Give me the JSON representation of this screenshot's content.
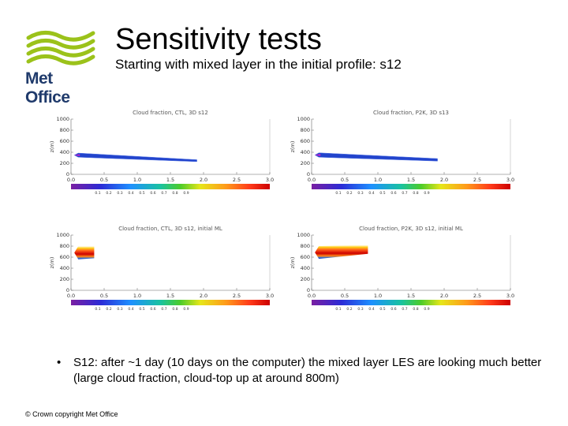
{
  "slide": {
    "title": "Sensitivity tests",
    "subtitle": "Starting with mixed layer in the initial profile: s12",
    "logo_text": "Met Office",
    "bullet_symbol": "•",
    "bullet_text": "S12: after ~1 day (10 days on the computer) the mixed layer LES are looking much better (large cloud fraction, cloud-top up at around 800m)",
    "footer": "© Crown copyright   Met Office"
  },
  "colors": {
    "logo_green": "#9bc21a",
    "logo_text": "#1f3a6b",
    "blue_cloud": "#2244cc"
  },
  "chart_data": [
    {
      "type": "heatmap",
      "title": "Cloud fraction, CTL, 3D s12",
      "ylabel": "z(m)",
      "xticks": [
        "0.0",
        "0.5",
        "1.0",
        "1.5",
        "2.0",
        "2.5",
        "3.0"
      ],
      "yticks": [
        "0",
        "200",
        "400",
        "600",
        "800",
        "1000"
      ],
      "colorbar_ticks": [
        "0.1",
        "0.2",
        "0.3",
        "0.4",
        "0.5",
        "0.6",
        "0.7",
        "0.8",
        "0.9"
      ],
      "xlim": [
        0,
        3
      ],
      "ylim": [
        0,
        1000
      ],
      "cloud": {
        "x_end": 1.9,
        "base_start": 310,
        "top_start": 385,
        "base_end": 230,
        "top_end": 265
      }
    },
    {
      "type": "heatmap",
      "title": "Cloud fraction, P2K, 3D s13",
      "ylabel": "z(m)",
      "xticks": [
        "0.0",
        "0.5",
        "1.0",
        "1.5",
        "2.0",
        "2.5",
        "3.0"
      ],
      "yticks": [
        "0",
        "200",
        "400",
        "600",
        "800",
        "1000"
      ],
      "colorbar_ticks": [
        "0.1",
        "0.2",
        "0.3",
        "0.4",
        "0.5",
        "0.6",
        "0.7",
        "0.8",
        "0.9"
      ],
      "xlim": [
        0,
        3
      ],
      "ylim": [
        0,
        1000
      ],
      "cloud": {
        "x_end": 1.9,
        "base_start": 310,
        "top_start": 390,
        "base_end": 240,
        "top_end": 285
      }
    },
    {
      "type": "heatmap",
      "title": "Cloud fraction, CTL, 3D s12, initial ML",
      "ylabel": "z(m)",
      "xticks": [
        "0.0",
        "0.5",
        "1.0",
        "1.5",
        "2.0",
        "2.5",
        "3.0"
      ],
      "yticks": [
        "0",
        "200",
        "400",
        "600",
        "800",
        "1000"
      ],
      "colorbar_ticks": [
        "0.1",
        "0.2",
        "0.3",
        "0.4",
        "0.5",
        "0.6",
        "0.7",
        "0.8",
        "0.9"
      ],
      "xlim": [
        0,
        3
      ],
      "ylim": [
        0,
        1000
      ],
      "cloud": {
        "x_end": 0.35,
        "base_start": 560,
        "top_start": 800,
        "base_end": 580,
        "top_end": 800
      }
    },
    {
      "type": "heatmap",
      "title": "Cloud fraction, P2K, 3D s12, initial ML",
      "ylabel": "z(m)",
      "xticks": [
        "0.0",
        "0.5",
        "1.0",
        "1.5",
        "2.0",
        "2.5",
        "3.0"
      ],
      "yticks": [
        "0",
        "200",
        "400",
        "600",
        "800",
        "1000"
      ],
      "colorbar_ticks": [
        "0.1",
        "0.2",
        "0.3",
        "0.4",
        "0.5",
        "0.6",
        "0.7",
        "0.8",
        "0.9"
      ],
      "xlim": [
        0,
        3
      ],
      "ylim": [
        0,
        1000
      ],
      "cloud": {
        "x_end": 0.85,
        "base_start": 570,
        "top_start": 800,
        "base_end": 660,
        "top_end": 820
      }
    }
  ]
}
